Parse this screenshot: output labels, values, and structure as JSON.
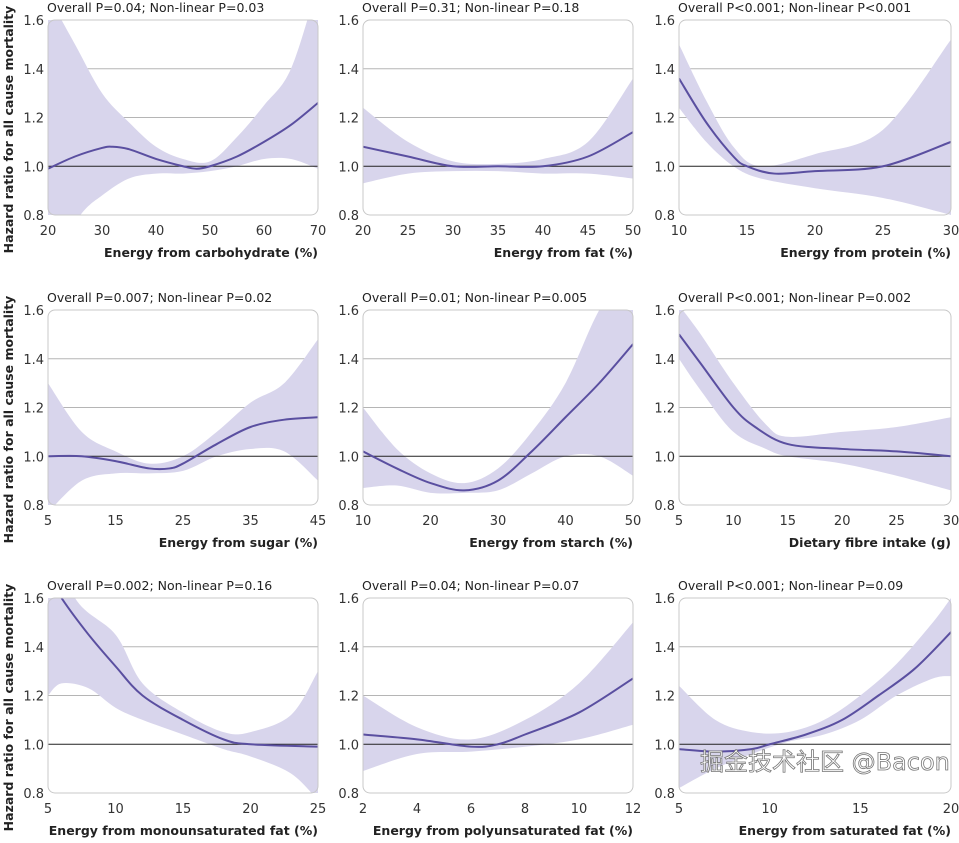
{
  "chart_data": [
    {
      "type": "line",
      "title": "Overall P=0.04; Non-linear P=0.03",
      "xlabel": "Energy from carbohydrate (%)",
      "ylabel": "Hazard ratio for all cause mortality",
      "xlim": [
        20,
        70
      ],
      "xticks": [
        20,
        30,
        40,
        50,
        60,
        70
      ],
      "ylim": [
        0.8,
        1.6
      ],
      "yticks": [
        0.8,
        1.0,
        1.2,
        1.4,
        1.6
      ],
      "reference": 1.0,
      "hr": [
        [
          20,
          0.99
        ],
        [
          25,
          1.04
        ],
        [
          30,
          1.075
        ],
        [
          32,
          1.08
        ],
        [
          35,
          1.07
        ],
        [
          40,
          1.03
        ],
        [
          45,
          1.0
        ],
        [
          47.5,
          0.99
        ],
        [
          50,
          1.0
        ],
        [
          55,
          1.04
        ],
        [
          60,
          1.1
        ],
        [
          65,
          1.17
        ],
        [
          70,
          1.26
        ]
      ],
      "upper": [
        [
          20,
          1.7
        ],
        [
          25,
          1.5
        ],
        [
          30,
          1.3
        ],
        [
          35,
          1.18
        ],
        [
          40,
          1.08
        ],
        [
          45,
          1.03
        ],
        [
          50,
          1.02
        ],
        [
          55,
          1.12
        ],
        [
          60,
          1.25
        ],
        [
          65,
          1.4
        ],
        [
          70,
          1.75
        ]
      ],
      "lower": [
        [
          20,
          0.6
        ],
        [
          26,
          0.8
        ],
        [
          30,
          0.88
        ],
        [
          35,
          0.95
        ],
        [
          40,
          0.97
        ],
        [
          45,
          0.97
        ],
        [
          50,
          0.98
        ],
        [
          55,
          1.0
        ],
        [
          60,
          1.03
        ],
        [
          65,
          1.03
        ],
        [
          70,
          0.99
        ]
      ]
    },
    {
      "type": "line",
      "title": "Overall P=0.31; Non-linear P=0.18",
      "xlabel": "Energy from fat (%)",
      "ylabel": "",
      "xlim": [
        20,
        50
      ],
      "xticks": [
        20,
        25,
        30,
        35,
        40,
        45,
        50
      ],
      "ylim": [
        0.8,
        1.6
      ],
      "yticks": [
        0.8,
        1.0,
        1.2,
        1.4,
        1.6
      ],
      "reference": 1.0,
      "hr": [
        [
          20,
          1.08
        ],
        [
          25,
          1.04
        ],
        [
          30,
          1.0
        ],
        [
          35,
          1.0
        ],
        [
          40,
          1.0
        ],
        [
          45,
          1.04
        ],
        [
          50,
          1.14
        ]
      ],
      "upper": [
        [
          20,
          1.24
        ],
        [
          25,
          1.1
        ],
        [
          30,
          1.02
        ],
        [
          35,
          1.01
        ],
        [
          40,
          1.03
        ],
        [
          45,
          1.1
        ],
        [
          50,
          1.36
        ]
      ],
      "lower": [
        [
          20,
          0.93
        ],
        [
          25,
          0.97
        ],
        [
          30,
          0.98
        ],
        [
          35,
          0.98
        ],
        [
          40,
          0.97
        ],
        [
          45,
          0.97
        ],
        [
          50,
          0.95
        ]
      ]
    },
    {
      "type": "line",
      "title": "Overall P<0.001; Non-linear P<0.001",
      "xlabel": "Energy from protein (%)",
      "ylabel": "",
      "xlim": [
        10,
        30
      ],
      "xticks": [
        10,
        15,
        20,
        25,
        30
      ],
      "ylim": [
        0.8,
        1.6
      ],
      "yticks": [
        0.8,
        1.0,
        1.2,
        1.4,
        1.6
      ],
      "reference": 1.0,
      "hr": [
        [
          10,
          1.36
        ],
        [
          12,
          1.18
        ],
        [
          14,
          1.04
        ],
        [
          15,
          1.0
        ],
        [
          17,
          0.97
        ],
        [
          20,
          0.98
        ],
        [
          25,
          1.0
        ],
        [
          30,
          1.1
        ]
      ],
      "upper": [
        [
          10,
          1.5
        ],
        [
          12,
          1.27
        ],
        [
          14,
          1.08
        ],
        [
          16,
          1.0
        ],
        [
          20,
          1.05
        ],
        [
          25,
          1.15
        ],
        [
          30,
          1.52
        ]
      ],
      "lower": [
        [
          10,
          1.24
        ],
        [
          12,
          1.1
        ],
        [
          14,
          1.0
        ],
        [
          16,
          0.95
        ],
        [
          20,
          0.91
        ],
        [
          25,
          0.87
        ],
        [
          30,
          0.8
        ]
      ]
    },
    {
      "type": "line",
      "title": "Overall P=0.007; Non-linear P=0.02",
      "xlabel": "Energy from sugar (%)",
      "ylabel": "Hazard ratio for all cause mortality",
      "xlim": [
        5,
        45
      ],
      "xticks": [
        5,
        15,
        25,
        35,
        45
      ],
      "ylim": [
        0.8,
        1.6
      ],
      "yticks": [
        0.8,
        1.0,
        1.2,
        1.4,
        1.6
      ],
      "reference": 1.0,
      "hr": [
        [
          5,
          1.0
        ],
        [
          10,
          1.0
        ],
        [
          15,
          0.98
        ],
        [
          20,
          0.95
        ],
        [
          23,
          0.95
        ],
        [
          25,
          0.97
        ],
        [
          30,
          1.05
        ],
        [
          35,
          1.12
        ],
        [
          40,
          1.15
        ],
        [
          45,
          1.16
        ]
      ],
      "upper": [
        [
          5,
          1.3
        ],
        [
          10,
          1.1
        ],
        [
          15,
          1.02
        ],
        [
          20,
          0.97
        ],
        [
          25,
          1.0
        ],
        [
          30,
          1.1
        ],
        [
          35,
          1.22
        ],
        [
          40,
          1.3
        ],
        [
          45,
          1.48
        ]
      ],
      "lower": [
        [
          5,
          0.77
        ],
        [
          10,
          0.9
        ],
        [
          15,
          0.93
        ],
        [
          20,
          0.93
        ],
        [
          25,
          0.94
        ],
        [
          30,
          1.0
        ],
        [
          35,
          1.03
        ],
        [
          40,
          1.02
        ],
        [
          45,
          0.9
        ]
      ]
    },
    {
      "type": "line",
      "title": "Overall P=0.01; Non-linear P=0.005",
      "xlabel": "Energy from starch (%)",
      "ylabel": "",
      "xlim": [
        10,
        50
      ],
      "xticks": [
        10,
        20,
        30,
        40,
        50
      ],
      "ylim": [
        0.8,
        1.6
      ],
      "yticks": [
        0.8,
        1.0,
        1.2,
        1.4,
        1.6
      ],
      "reference": 1.0,
      "hr": [
        [
          10,
          1.02
        ],
        [
          15,
          0.95
        ],
        [
          20,
          0.89
        ],
        [
          25,
          0.86
        ],
        [
          30,
          0.9
        ],
        [
          35,
          1.02
        ],
        [
          40,
          1.16
        ],
        [
          45,
          1.3
        ],
        [
          50,
          1.46
        ]
      ],
      "upper": [
        [
          10,
          1.2
        ],
        [
          15,
          1.03
        ],
        [
          20,
          0.93
        ],
        [
          25,
          0.89
        ],
        [
          30,
          0.95
        ],
        [
          35,
          1.1
        ],
        [
          40,
          1.3
        ],
        [
          45,
          1.6
        ],
        [
          50,
          1.8
        ]
      ],
      "lower": [
        [
          10,
          0.87
        ],
        [
          15,
          0.88
        ],
        [
          20,
          0.85
        ],
        [
          25,
          0.85
        ],
        [
          30,
          0.86
        ],
        [
          35,
          0.93
        ],
        [
          40,
          1.0
        ],
        [
          45,
          1.0
        ],
        [
          50,
          0.92
        ]
      ]
    },
    {
      "type": "line",
      "title": "Overall P<0.001; Non-linear P=0.002",
      "xlabel": "Dietary fibre intake (g)",
      "ylabel": "",
      "xlim": [
        5,
        30
      ],
      "xticks": [
        5,
        10,
        15,
        20,
        25,
        30
      ],
      "ylim": [
        0.8,
        1.6
      ],
      "yticks": [
        0.8,
        1.0,
        1.2,
        1.4,
        1.6
      ],
      "reference": 1.0,
      "hr": [
        [
          5,
          1.5
        ],
        [
          7,
          1.38
        ],
        [
          10,
          1.2
        ],
        [
          12,
          1.12
        ],
        [
          15,
          1.05
        ],
        [
          20,
          1.03
        ],
        [
          25,
          1.02
        ],
        [
          30,
          1.0
        ]
      ],
      "upper": [
        [
          5,
          1.62
        ],
        [
          7,
          1.5
        ],
        [
          10,
          1.3
        ],
        [
          13,
          1.13
        ],
        [
          15,
          1.08
        ],
        [
          20,
          1.1
        ],
        [
          25,
          1.12
        ],
        [
          30,
          1.16
        ]
      ],
      "lower": [
        [
          5,
          1.4
        ],
        [
          7,
          1.27
        ],
        [
          10,
          1.1
        ],
        [
          13,
          1.03
        ],
        [
          15,
          1.0
        ],
        [
          20,
          0.97
        ],
        [
          25,
          0.92
        ],
        [
          30,
          0.86
        ]
      ]
    },
    {
      "type": "line",
      "title": "Overall P=0.002; Non-linear P=0.16",
      "xlabel": "Energy from monounsaturated fat (%)",
      "ylabel": "Hazard ratio for all cause mortality",
      "xlim": [
        5,
        25
      ],
      "xticks": [
        5,
        10,
        15,
        20,
        25
      ],
      "ylim": [
        0.8,
        1.6
      ],
      "yticks": [
        0.8,
        1.0,
        1.2,
        1.4,
        1.6
      ],
      "reference": 1.0,
      "hr": [
        [
          5,
          1.7
        ],
        [
          6,
          1.6
        ],
        [
          8,
          1.45
        ],
        [
          10,
          1.32
        ],
        [
          12,
          1.2
        ],
        [
          15,
          1.1
        ],
        [
          18,
          1.02
        ],
        [
          20,
          1.0
        ],
        [
          25,
          0.99
        ]
      ],
      "upper": [
        [
          5,
          1.9
        ],
        [
          7,
          1.6
        ],
        [
          10,
          1.45
        ],
        [
          12,
          1.25
        ],
        [
          15,
          1.13
        ],
        [
          18,
          1.05
        ],
        [
          20,
          1.05
        ],
        [
          23,
          1.12
        ],
        [
          25,
          1.3
        ]
      ],
      "lower": [
        [
          5,
          1.2
        ],
        [
          6,
          1.25
        ],
        [
          8,
          1.23
        ],
        [
          10,
          1.15
        ],
        [
          12,
          1.1
        ],
        [
          15,
          1.04
        ],
        [
          18,
          0.98
        ],
        [
          20,
          0.95
        ],
        [
          23,
          0.88
        ],
        [
          25,
          0.77
        ]
      ]
    },
    {
      "type": "line",
      "title": "Overall P=0.04; Non-linear P=0.07",
      "xlabel": "Energy from polyunsaturated fat (%)",
      "ylabel": "",
      "xlim": [
        2,
        12
      ],
      "xticks": [
        2,
        4,
        6,
        8,
        10,
        12
      ],
      "ylim": [
        0.8,
        1.6
      ],
      "yticks": [
        0.8,
        1.0,
        1.2,
        1.4,
        1.6
      ],
      "reference": 1.0,
      "hr": [
        [
          2,
          1.04
        ],
        [
          4,
          1.02
        ],
        [
          6,
          0.99
        ],
        [
          7,
          1.0
        ],
        [
          8,
          1.04
        ],
        [
          10,
          1.13
        ],
        [
          12,
          1.27
        ]
      ],
      "upper": [
        [
          2,
          1.2
        ],
        [
          4,
          1.07
        ],
        [
          6,
          1.02
        ],
        [
          8,
          1.1
        ],
        [
          10,
          1.25
        ],
        [
          12,
          1.5
        ]
      ],
      "lower": [
        [
          2,
          0.89
        ],
        [
          4,
          0.96
        ],
        [
          6,
          0.97
        ],
        [
          8,
          0.99
        ],
        [
          10,
          1.02
        ],
        [
          12,
          1.08
        ]
      ]
    },
    {
      "type": "line",
      "title": "Overall P<0.001; Non-linear P=0.09",
      "xlabel": "Energy from saturated fat (%)",
      "ylabel": "",
      "xlim": [
        5,
        20
      ],
      "xticks": [
        5,
        10,
        15,
        20
      ],
      "ylim": [
        0.8,
        1.6
      ],
      "yticks": [
        0.8,
        1.0,
        1.2,
        1.4,
        1.6
      ],
      "reference": 1.0,
      "hr": [
        [
          5,
          0.98
        ],
        [
          7,
          0.97
        ],
        [
          9,
          0.98
        ],
        [
          10,
          1.0
        ],
        [
          12,
          1.04
        ],
        [
          14,
          1.1
        ],
        [
          16,
          1.2
        ],
        [
          18,
          1.31
        ],
        [
          20,
          1.46
        ]
      ],
      "upper": [
        [
          5,
          1.24
        ],
        [
          7,
          1.1
        ],
        [
          9,
          1.05
        ],
        [
          11,
          1.05
        ],
        [
          13,
          1.1
        ],
        [
          15,
          1.2
        ],
        [
          17,
          1.33
        ],
        [
          19,
          1.5
        ],
        [
          20,
          1.6
        ]
      ],
      "lower": [
        [
          5,
          0.82
        ],
        [
          7,
          0.9
        ],
        [
          9,
          0.96
        ],
        [
          11,
          1.01
        ],
        [
          13,
          1.04
        ],
        [
          15,
          1.1
        ],
        [
          17,
          1.2
        ],
        [
          19,
          1.27
        ],
        [
          20,
          1.28
        ]
      ]
    }
  ],
  "colors": {
    "line": "#5a4fa0",
    "band": "#d8d5ec",
    "grid": "#b5b5b5",
    "reference": "#222222",
    "frame": "#c8c8c8"
  },
  "watermark": "掘金技术社区 @Bacon"
}
